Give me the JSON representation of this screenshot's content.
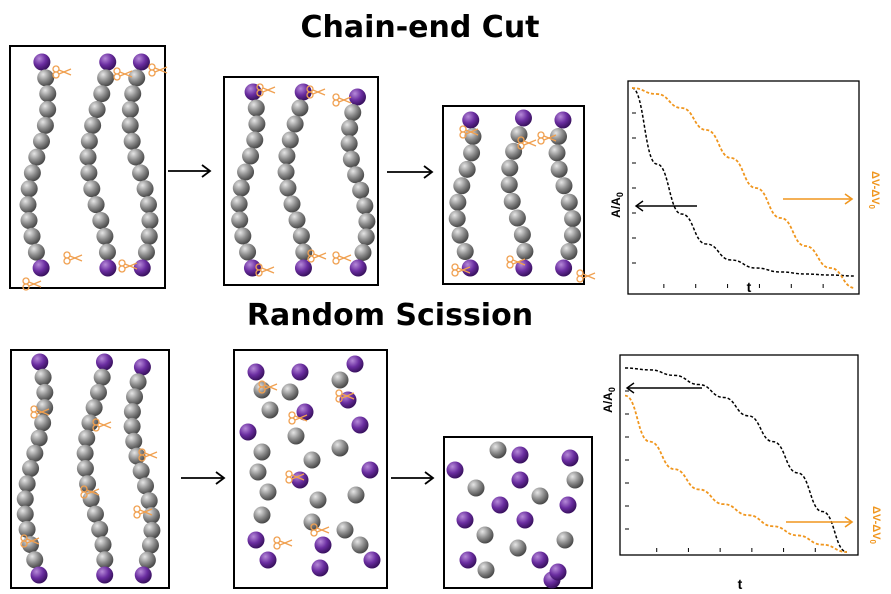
{
  "titles": {
    "top": "Chain-end Cut",
    "bottom": "Random Scission"
  },
  "colors": {
    "bead": "#8a8a8a",
    "end_group": "#6a2da0",
    "scissors": "#f0a050",
    "curve_black": "#000000",
    "curve_orange": "#f0961e"
  },
  "icons": [
    "scissors-icon",
    "arrow-right-icon",
    "polymer-bead-icon",
    "end-group-icon"
  ],
  "chart_data": [
    {
      "type": "line",
      "title": "",
      "xlabel": "t",
      "ylabel": "A/A0",
      "y2label": "ΔV-ΔV0",
      "grid": false,
      "series": [
        {
          "values": [
            1.0,
            0.62,
            0.37,
            0.22,
            0.14,
            0.1,
            0.08,
            0.07,
            0.065,
            0.06
          ]
        },
        {
          "values": [
            1.0,
            0.97,
            0.9,
            0.79,
            0.65,
            0.5,
            0.35,
            0.21,
            0.1,
            0.0
          ]
        }
      ]
    },
    {
      "type": "line",
      "title": "",
      "xlabel": "t",
      "ylabel": "A/A0",
      "y2label": "ΔV-ΔV0",
      "grid": false,
      "series": [
        {
          "values": [
            1.0,
            0.99,
            0.96,
            0.91,
            0.84,
            0.74,
            0.6,
            0.43,
            0.22,
            0.0
          ]
        },
        {
          "values": [
            0.85,
            0.6,
            0.45,
            0.34,
            0.26,
            0.2,
            0.14,
            0.09,
            0.04,
            0.0
          ]
        }
      ]
    }
  ]
}
